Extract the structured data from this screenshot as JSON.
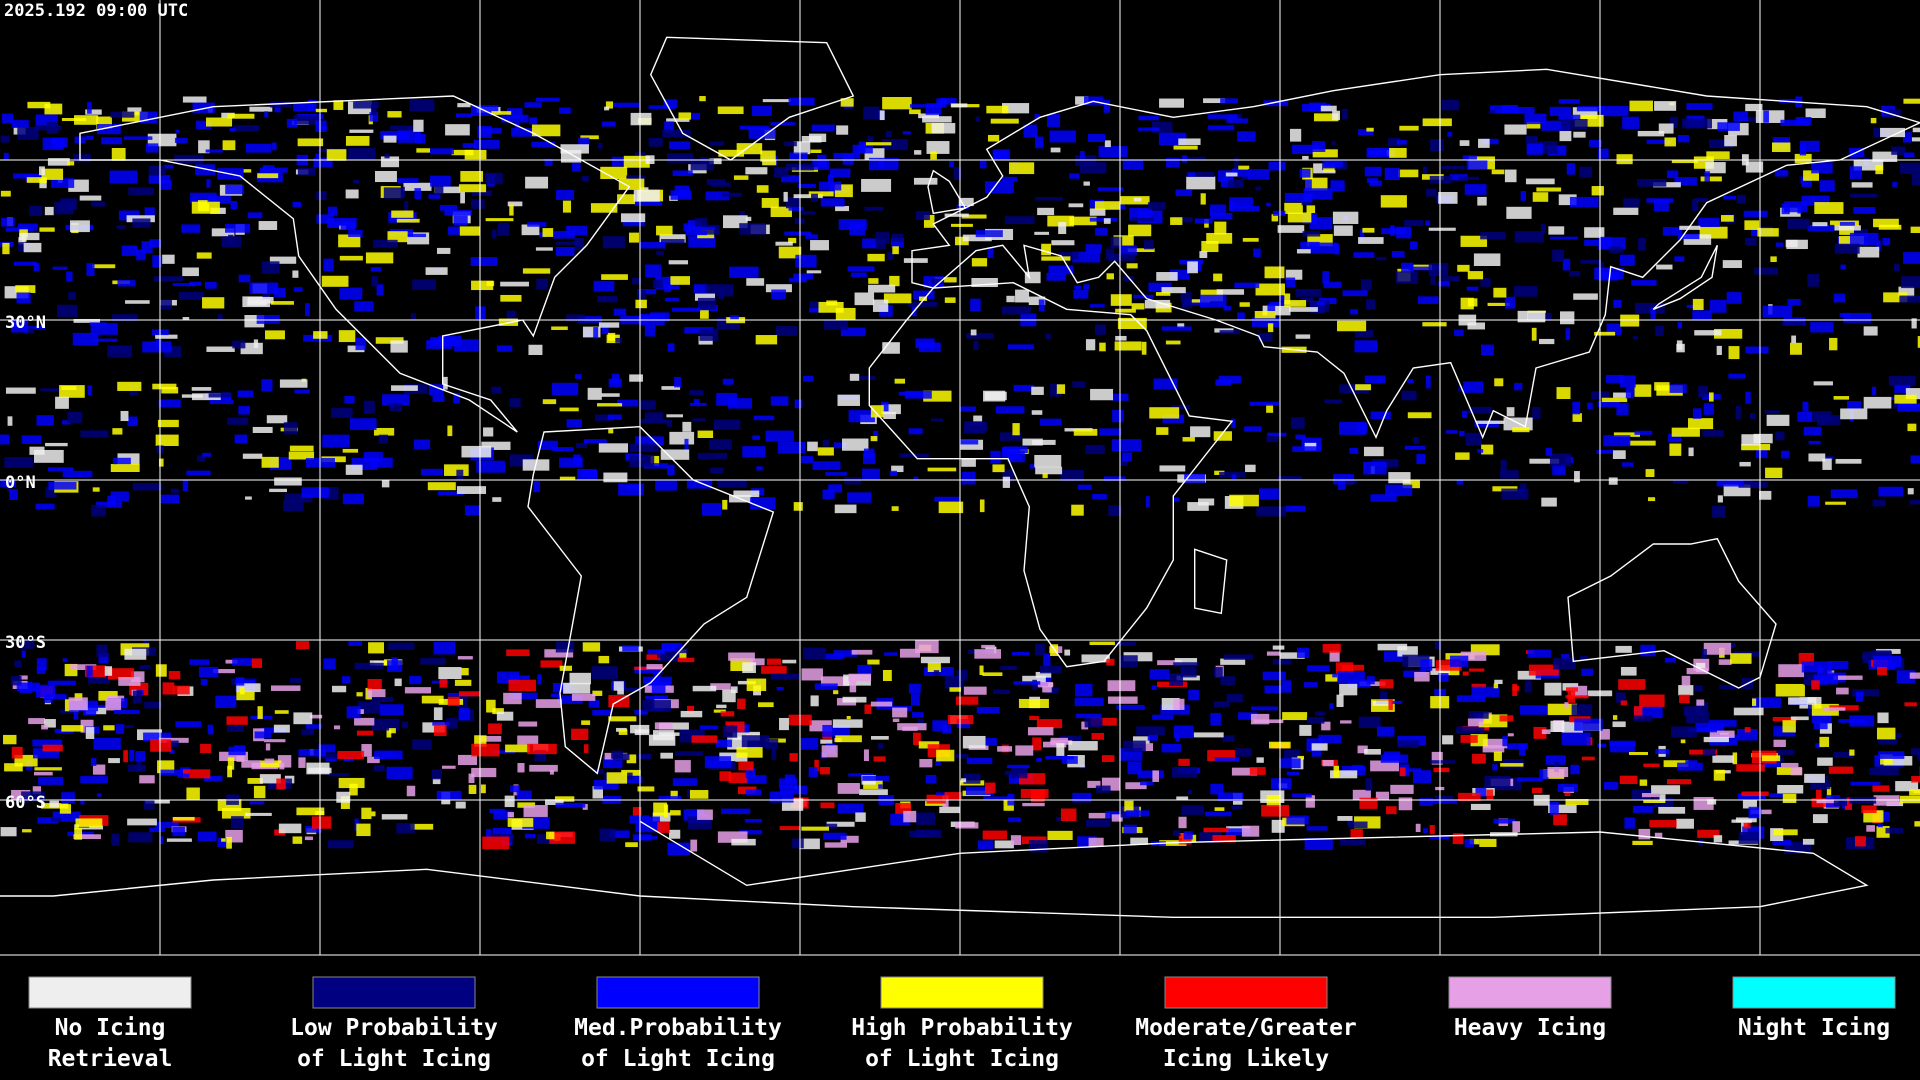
{
  "timestamp": "2025.192 09:00 UTC",
  "latitude_labels": [
    "30°N",
    "0°N",
    "30°S",
    "60°S"
  ],
  "legend": [
    {
      "label_lines": [
        "No Icing",
        "Retrieval"
      ],
      "color": "#eeeeee"
    },
    {
      "label_lines": [
        "Low Probability",
        "of Light Icing"
      ],
      "color": "#000080"
    },
    {
      "label_lines": [
        "Med.Probability",
        "of Light Icing"
      ],
      "color": "#0000ff"
    },
    {
      "label_lines": [
        "High Probability",
        "of Light Icing"
      ],
      "color": "#ffff00"
    },
    {
      "label_lines": [
        "Moderate/Greater",
        "Icing Likely"
      ],
      "color": "#ff0000"
    },
    {
      "label_lines": [
        "Heavy Icing"
      ],
      "color": "#e6a0e6"
    },
    {
      "label_lines": [
        "Night Icing"
      ],
      "color": "#00ffff"
    }
  ]
}
